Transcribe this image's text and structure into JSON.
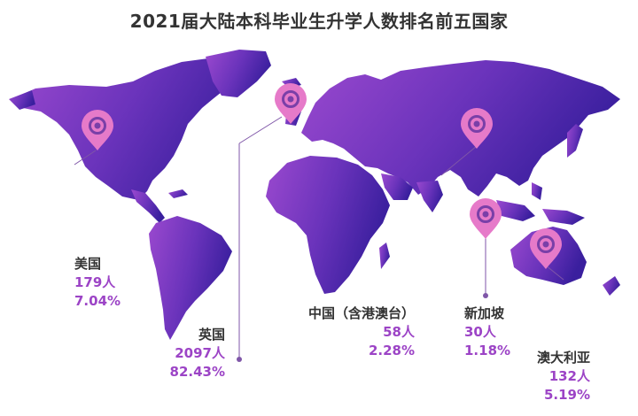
{
  "title": "2021届大陆本科毕业生升学人数排名前五国家",
  "colors": {
    "land_start": "#9b49cf",
    "land_end": "#3a1f9e",
    "pin": "#e67ac9",
    "pin_ring": "#7a3fa8",
    "leader": "#7f56a8",
    "value_text": "#9c44c6",
    "name_text": "#333333"
  },
  "countries": [
    {
      "name": "美国",
      "count": "179人",
      "percent": "7.04%"
    },
    {
      "name": "英国",
      "count": "2097人",
      "percent": "82.43%"
    },
    {
      "name": "中国（含港澳台）",
      "count": "58人",
      "percent": "2.28%"
    },
    {
      "name": "新加坡",
      "count": "30人",
      "percent": "1.18%"
    },
    {
      "name": "澳大利亚",
      "count": "132人",
      "percent": "5.19%"
    }
  ],
  "icons": [
    "location-pin-icon"
  ]
}
